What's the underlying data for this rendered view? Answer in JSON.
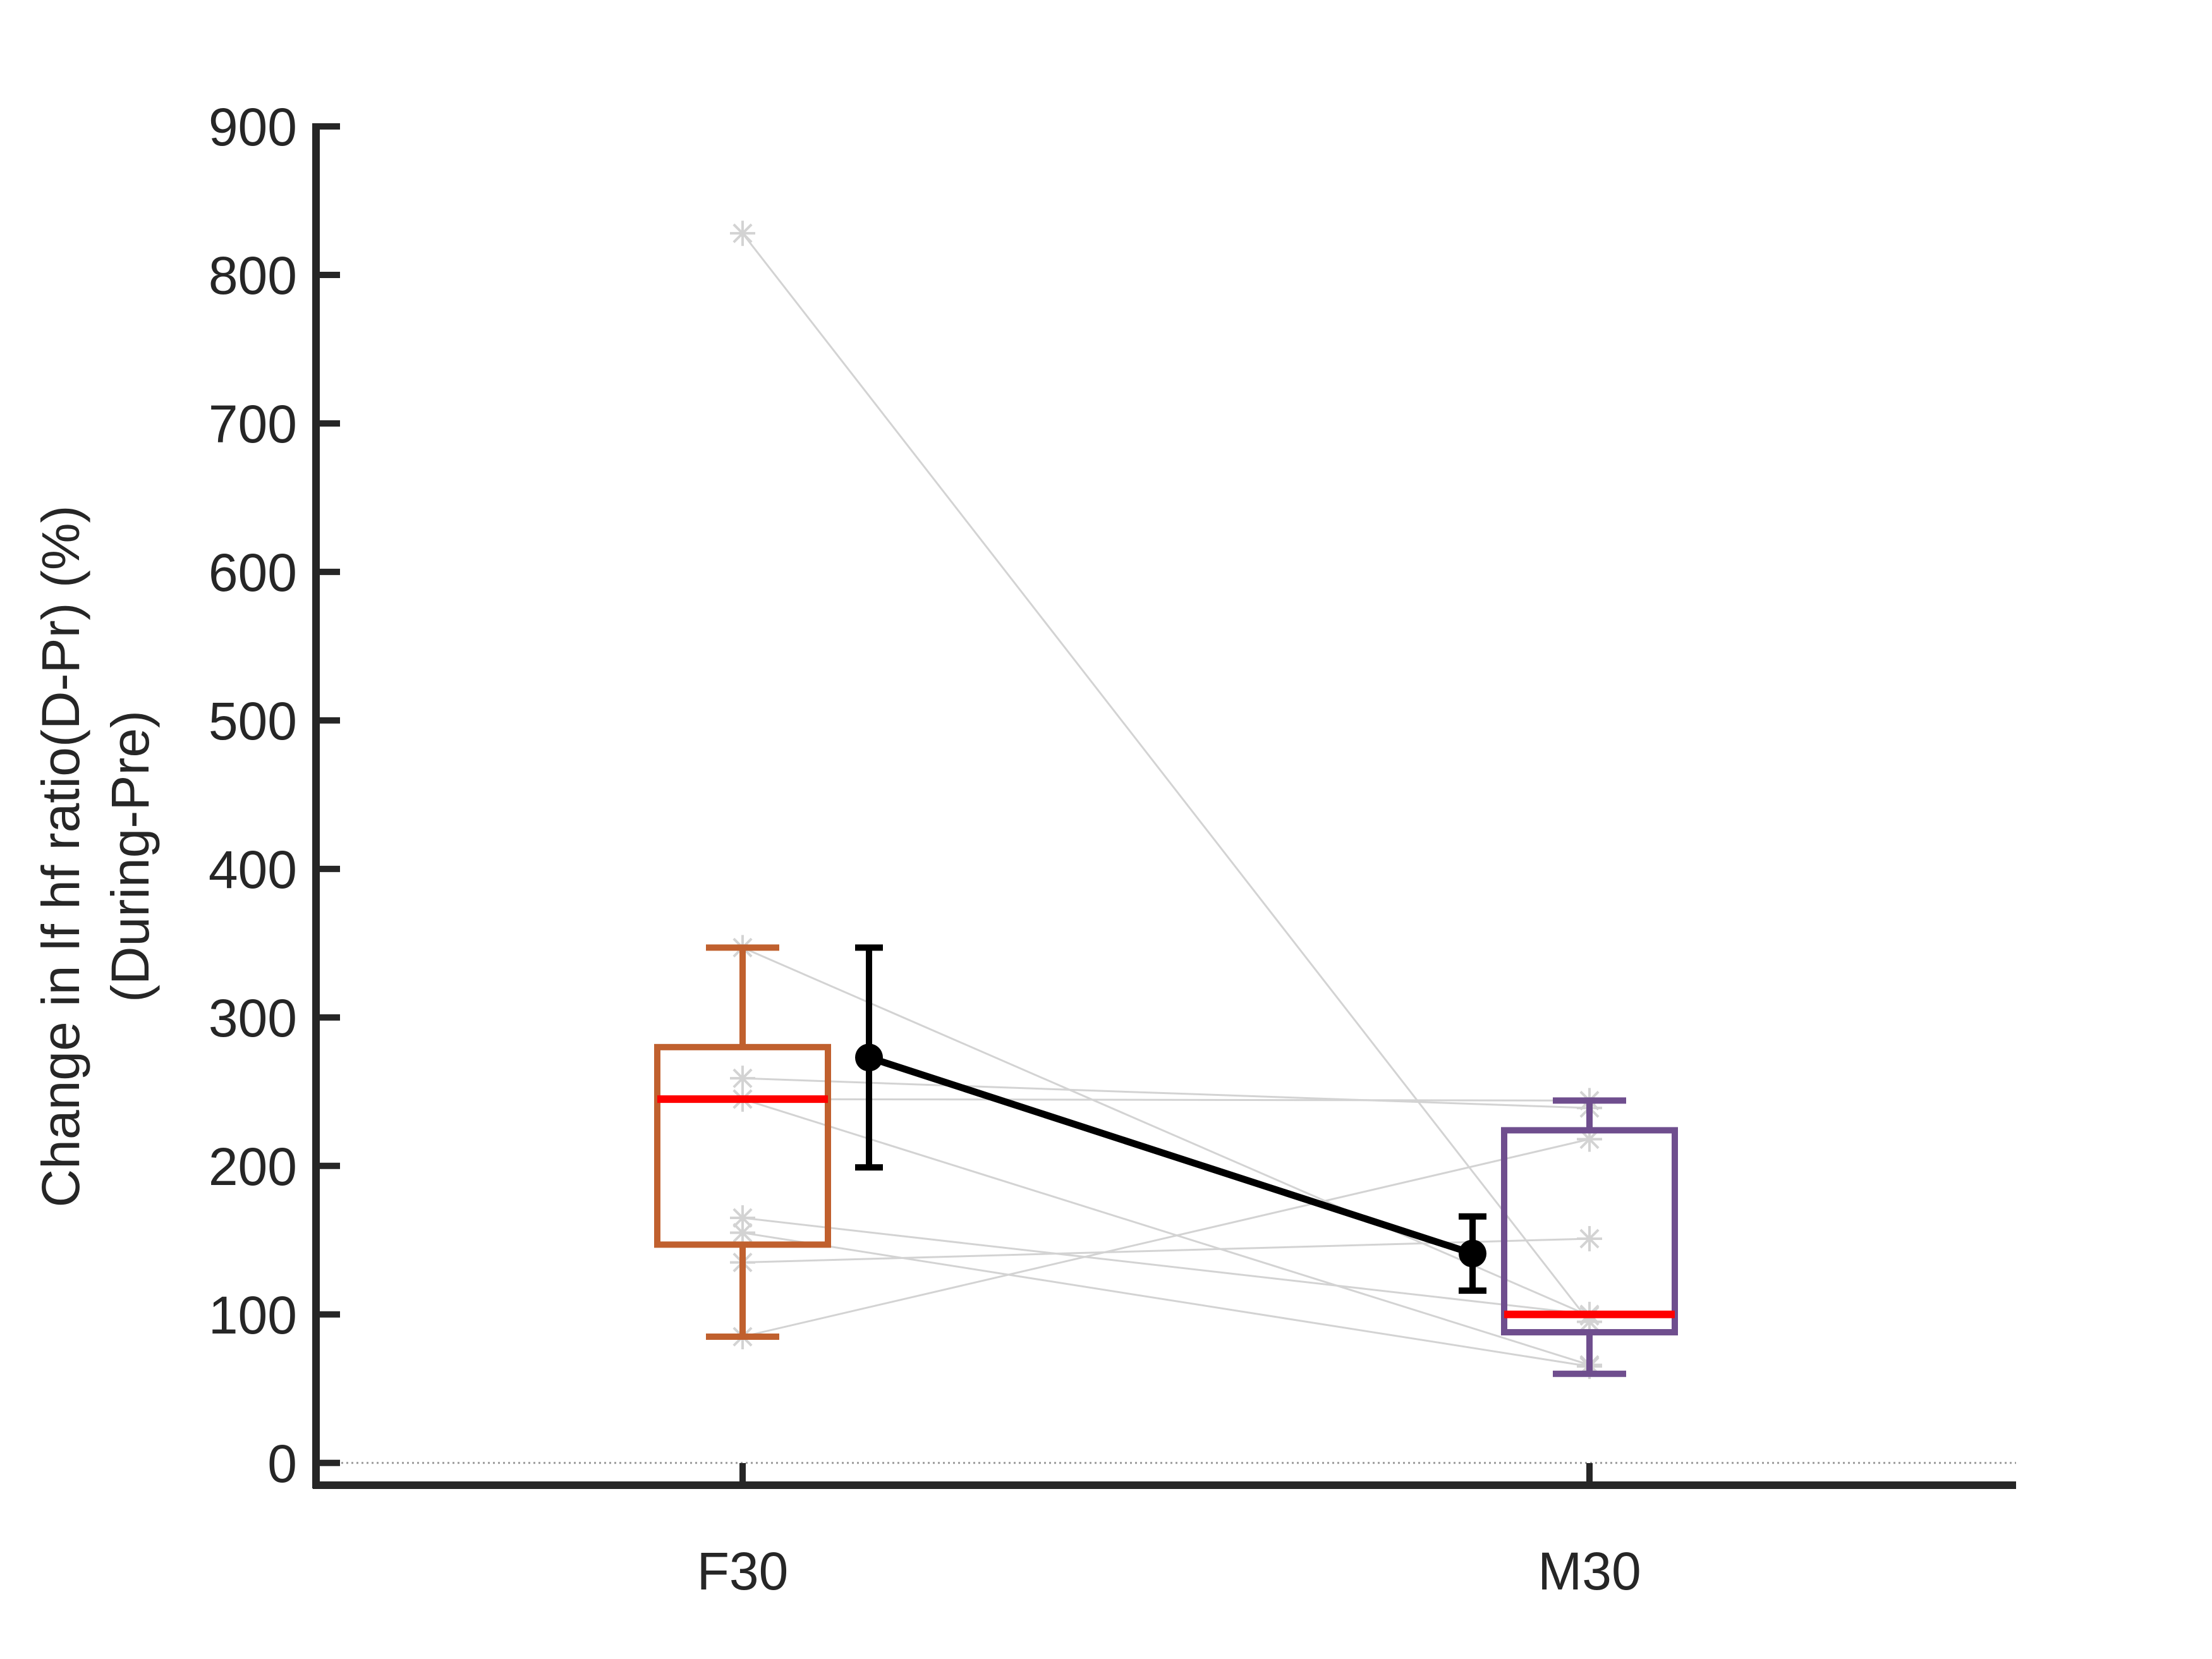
{
  "chart_data": {
    "type": "box",
    "categories": [
      "F30",
      "M30"
    ],
    "ylabel_lines": [
      "Change in lf hf ratio(D-Pr) (%)",
      "(During-Pre)"
    ],
    "ylim": [
      -15,
      900
    ],
    "yticks": [
      0,
      100,
      200,
      300,
      400,
      500,
      600,
      700,
      800,
      900
    ],
    "xlabel": "",
    "title": "",
    "grid": false,
    "reference_line_y": 0,
    "boxes": [
      {
        "category": "F30",
        "color": "#C0602E",
        "median_color": "#FF0000",
        "q1": 147,
        "median": 245,
        "q3": 280,
        "whisker_low": 85,
        "whisker_high": 347
      },
      {
        "category": "M30",
        "color": "#6F4E8E",
        "median_color": "#FF0000",
        "q1": 88,
        "median": 100,
        "q3": 224,
        "whisker_low": 60,
        "whisker_high": 244
      }
    ],
    "paired_subjects": [
      {
        "F30": 828,
        "M30": 95
      },
      {
        "F30": 347,
        "M30": 99
      },
      {
        "F30": 259,
        "M30": 239
      },
      {
        "F30": 245,
        "M30": 66
      },
      {
        "F30": 165,
        "M30": 100
      },
      {
        "F30": 155,
        "M30": 65
      },
      {
        "F30": 135,
        "M30": 151
      },
      {
        "F30": 85,
        "M30": 218
      },
      {
        "F30": 245,
        "M30": 244
      }
    ],
    "mean_series": {
      "color": "#000000",
      "points": [
        {
          "category": "F30",
          "mean": 273,
          "err_low": 199,
          "err_high": 347
        },
        {
          "category": "M30",
          "mean": 141,
          "err_low": 116,
          "err_high": 166
        }
      ]
    },
    "colors": {
      "axis": "#262626",
      "subject": "#D3D3D3",
      "reference": "#9A9A9A"
    }
  }
}
